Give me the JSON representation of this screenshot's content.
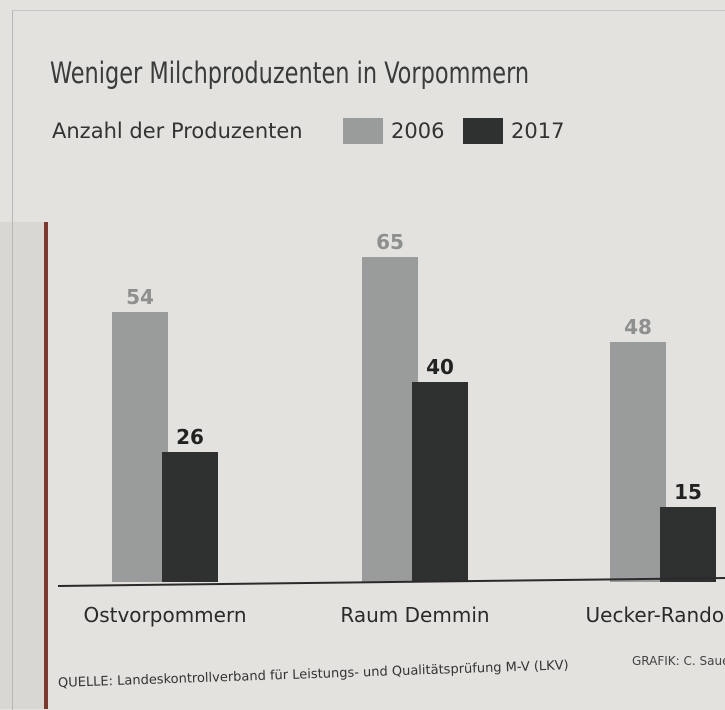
{
  "chart_data": {
    "type": "bar",
    "title": "Weniger Milchproduzenten in Vorpommern",
    "subtitle": "Anzahl der Produzenten",
    "categories": [
      "Ostvorpommern",
      "Raum Demmin",
      "Uecker-Randow"
    ],
    "series": [
      {
        "name": "2006",
        "values": [
          54,
          65,
          48
        ],
        "color": "#9a9c9b"
      },
      {
        "name": "2017",
        "values": [
          26,
          40,
          15
        ],
        "color": "#2e312f"
      }
    ],
    "ylim": [
      0,
      70
    ],
    "grid": false,
    "legend": "top"
  },
  "footer": {
    "source": "QUELLE:  Landeskontrollverband für Leistungs- und Qualitätsprüfung M-V (LKV)",
    "credit": "GRAFIK: C. Sauer"
  }
}
